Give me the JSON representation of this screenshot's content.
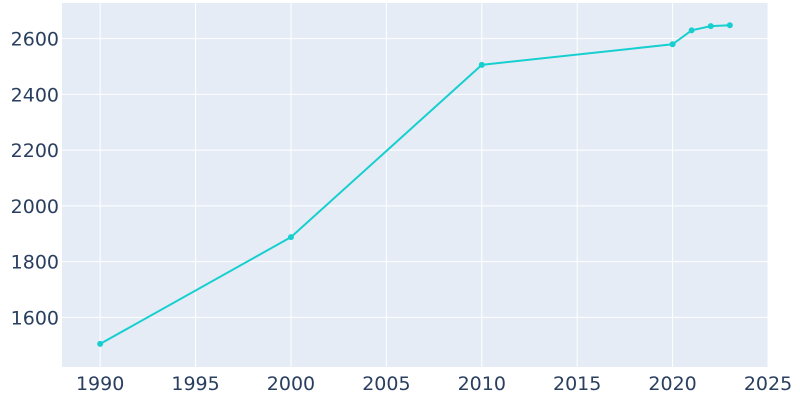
{
  "chart_data": {
    "type": "line",
    "title": "",
    "xlabel": "",
    "ylabel": "",
    "x": [
      1990,
      2000,
      2010,
      2020,
      2021,
      2022,
      2023
    ],
    "series": [
      {
        "values": [
          1505,
          1888,
          2506,
          2580,
          2630,
          2645,
          2648
        ]
      }
    ],
    "xlim": [
      1988,
      2025
    ],
    "ylim": [
      1422,
      2728
    ],
    "xticks": [
      1990,
      1995,
      2000,
      2005,
      2010,
      2015,
      2020,
      2025
    ],
    "yticks": [
      1600,
      1800,
      2000,
      2200,
      2400,
      2600
    ],
    "grid": true,
    "legend": "none",
    "colors": {
      "line": "#17cfcf",
      "plot_background": "#e5ecf6",
      "grid": "#ffffff",
      "text": "#2a3f5f"
    }
  }
}
